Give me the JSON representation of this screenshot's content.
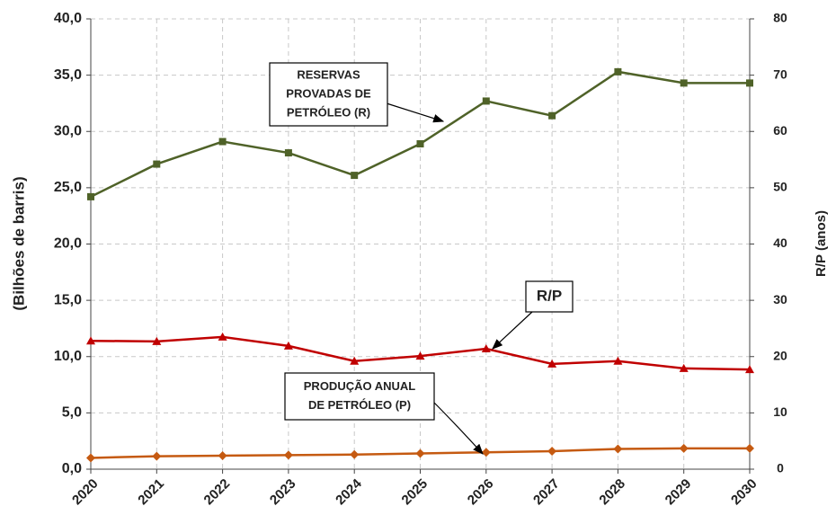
{
  "chart_data": {
    "type": "line",
    "categories": [
      "2020",
      "2021",
      "2022",
      "2023",
      "2024",
      "2025",
      "2026",
      "2027",
      "2028",
      "2029",
      "2030"
    ],
    "ylabel": "(Bilhões de barris)",
    "y2label": "R/P (anos)",
    "ylim": [
      0,
      40
    ],
    "yticks": [
      {
        "value": 0,
        "label": "0,0"
      },
      {
        "value": 5,
        "label": "5,0"
      },
      {
        "value": 10,
        "label": "10,0"
      },
      {
        "value": 15,
        "label": "15,0"
      },
      {
        "value": 20,
        "label": "20,0"
      },
      {
        "value": 25,
        "label": "25,0"
      },
      {
        "value": 30,
        "label": "30,0"
      },
      {
        "value": 35,
        "label": "35,0"
      },
      {
        "value": 40,
        "label": "40,0"
      }
    ],
    "y2lim": [
      0,
      80
    ],
    "y2ticks": [
      0,
      10,
      20,
      30,
      40,
      50,
      60,
      70,
      80
    ],
    "grid": true,
    "series": [
      {
        "color": "#4f6228",
        "marker": "square",
        "values": [
          24.2,
          27.1,
          29.1,
          28.1,
          26.1,
          28.9,
          32.7,
          31.4,
          35.3,
          34.3,
          34.3
        ]
      },
      {
        "color": "#c00000",
        "marker": "triangle",
        "axis": "y2",
        "values": [
          22.8,
          22.7,
          23.5,
          21.9,
          19.2,
          20.1,
          21.4,
          18.7,
          19.2,
          17.9,
          17.7
        ]
      },
      {
        "color": "#c55a11",
        "marker": "diamond",
        "values": [
          1.0,
          1.15,
          1.2,
          1.25,
          1.3,
          1.4,
          1.5,
          1.6,
          1.8,
          1.85,
          1.85
        ]
      }
    ],
    "annotations": [
      {
        "lines": [
          "RESERVAS",
          "PROVADAS DE",
          "PETRÓLEO (R)"
        ]
      },
      {
        "lines": [
          "R/P"
        ]
      },
      {
        "lines": [
          "PRODUÇÃO ANUAL",
          "DE PETRÓLEO (P)"
        ]
      }
    ]
  }
}
